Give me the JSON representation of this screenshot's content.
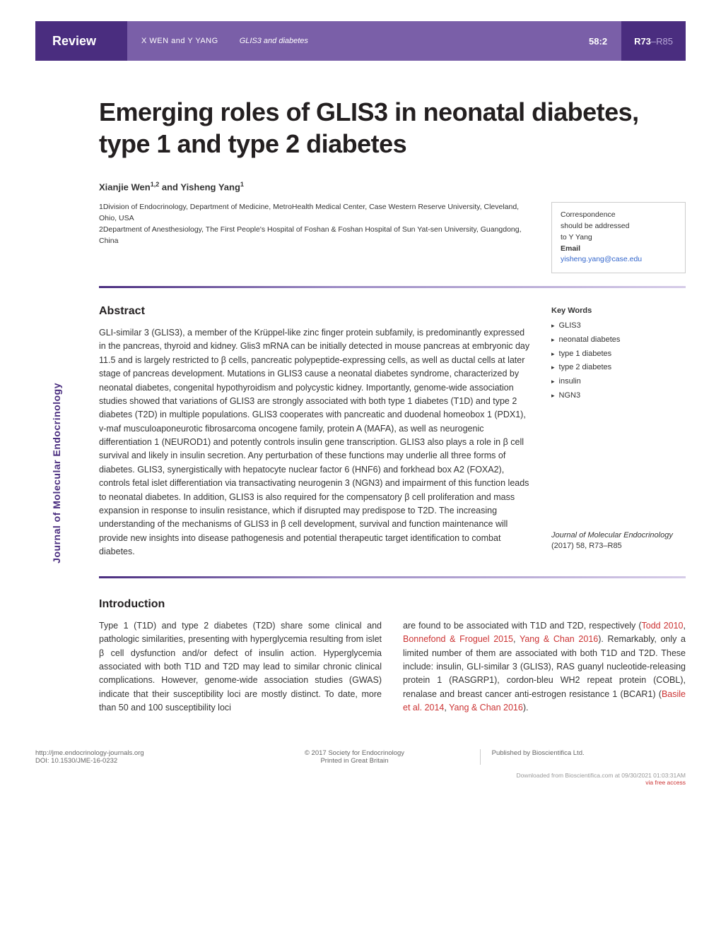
{
  "header": {
    "label": "Review",
    "authors_short": "X WEN and Y YANG",
    "short_title": "GLIS3 and diabetes",
    "volume": "58:2",
    "page_start": "R73",
    "page_end": "–R85"
  },
  "title": "Emerging roles of GLIS3 in neonatal diabetes, type 1 and type 2 diabetes",
  "authors": {
    "line": "Xianjie Wen1,2 and Yisheng Yang1",
    "a1": "Xianjie Wen",
    "a1_sup": "1,2",
    "a2": "Yisheng Yang",
    "a2_sup": "1"
  },
  "affiliations": {
    "aff1": "1Division of Endocrinology, Department of Medicine, MetroHealth Medical Center, Case Western Reserve University, Cleveland, Ohio, USA",
    "aff2": "2Department of Anesthesiology, The First People's Hospital of Foshan & Foshan Hospital of Sun Yat-sen University, Guangdong, China"
  },
  "correspondence": {
    "line1": "Correspondence",
    "line2": "should be addressed",
    "line3": "to Y Yang",
    "email_label": "Email",
    "email": "yisheng.yang@case.edu"
  },
  "abstract": {
    "heading": "Abstract",
    "text": "GLI-similar 3 (GLIS3), a member of the Krüppel-like zinc finger protein subfamily, is predominantly expressed in the pancreas, thyroid and kidney. Glis3 mRNA can be initially detected in mouse pancreas at embryonic day 11.5 and is largely restricted to β cells, pancreatic polypeptide-expressing cells, as well as ductal cells at later stage of pancreas development. Mutations in GLIS3 cause a neonatal diabetes syndrome, characterized by neonatal diabetes, congenital hypothyroidism and polycystic kidney. Importantly, genome-wide association studies showed that variations of GLIS3 are strongly associated with both type 1 diabetes (T1D) and type 2 diabetes (T2D) in multiple populations. GLIS3 cooperates with pancreatic and duodenal homeobox 1 (PDX1), v-maf musculoaponeurotic fibrosarcoma oncogene family, protein A (MAFA), as well as neurogenic differentiation 1 (NEUROD1) and potently controls insulin gene transcription. GLIS3 also plays a role in β cell survival and likely in insulin secretion. Any perturbation of these functions may underlie all three forms of diabetes. GLIS3, synergistically with hepatocyte nuclear factor 6 (HNF6) and forkhead box A2 (FOXA2), controls fetal islet differentiation via transactivating neurogenin 3 (NGN3) and impairment of this function leads to neonatal diabetes. In addition, GLIS3 is also required for the compensatory β cell proliferation and mass expansion in response to insulin resistance, which if disrupted may predispose to T2D. The increasing understanding of the mechanisms of GLIS3 in β cell development, survival and function maintenance will provide new insights into disease pathogenesis and potential therapeutic target identification to combat diabetes."
  },
  "keywords": {
    "heading": "Key Words",
    "items": [
      "GLIS3",
      "neonatal diabetes",
      "type 1 diabetes",
      "type 2 diabetes",
      "insulin",
      "NGN3"
    ]
  },
  "journal_ref": {
    "name": "Journal of Molecular Endocrinology",
    "citation": "(2017) 58, R73–R85"
  },
  "side_label": "Journal of Molecular Endocrinology",
  "introduction": {
    "heading": "Introduction",
    "col1": "Type 1 (T1D) and type 2 diabetes (T2D) share some clinical and pathologic similarities, presenting with hyperglycemia resulting from islet β cell dysfunction and/or defect of insulin action. Hyperglycemia associated with both T1D and T2D may lead to similar chronic clinical complications. However, genome-wide association studies (GWAS) indicate that their susceptibility loci are mostly distinct. To date, more than 50 and 100 susceptibility loci",
    "col2_pre": "are found to be associated with T1D and T2D, respectively (",
    "ref1": "Todd 2010",
    "ref2": "Bonnefond & Froguel 2015",
    "ref3": "Yang & Chan 2016",
    "col2_mid": "). Remarkably, only a limited number of them are associated with both T1D and T2D. These include: insulin, GLI-similar 3 (GLIS3), RAS guanyl nucleotide-releasing protein 1 (RASGRP1), cordon-bleu WH2 repeat protein (COBL), renalase and breast cancer anti-estrogen resistance 1 (BCAR1) (",
    "ref4": "Basile et al. 2014",
    "ref5": "Yang & Chan 2016",
    "col2_end": ")."
  },
  "footer": {
    "url": "http://jme.endocrinology-journals.org",
    "doi": "DOI: 10.1530/JME-16-0232",
    "copyright": "© 2017 Society for Endocrinology",
    "printed": "Printed in Great Britain",
    "published": "Published by Bioscientifica Ltd."
  },
  "download": {
    "text": "Downloaded from Bioscientifica.com at 09/30/2021 01:03:31AM",
    "via": "via free access"
  },
  "colors": {
    "primary": "#4a2d7f",
    "secondary": "#7a5fa8",
    "link": "#3366cc",
    "ref_link": "#cc3333"
  }
}
